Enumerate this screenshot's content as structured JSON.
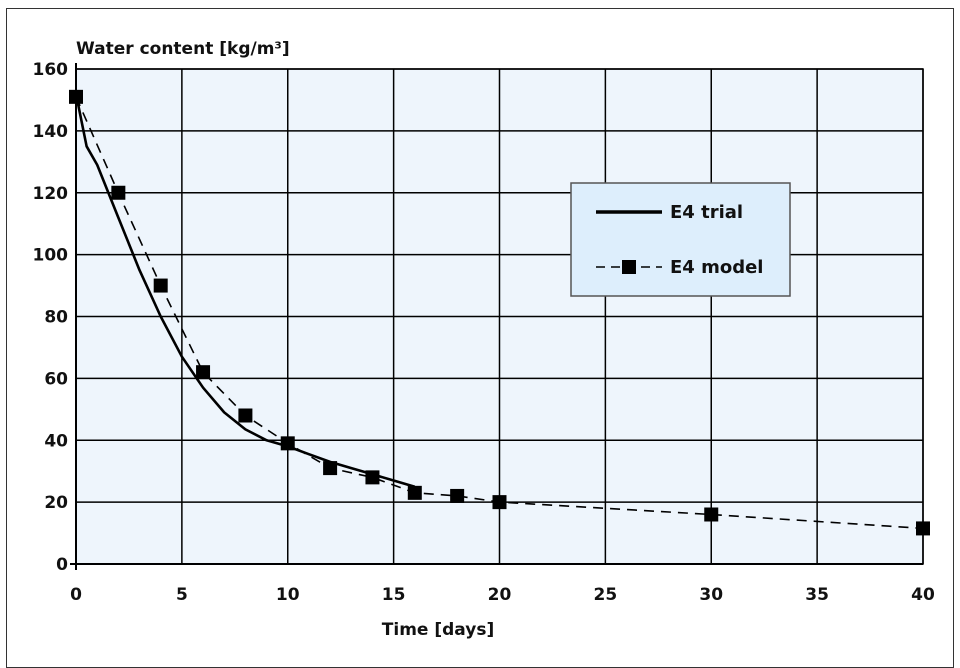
{
  "chart_data": {
    "type": "line",
    "ylabel": "Water content [kg/m³]",
    "xlabel": "Time [days]",
    "xlim": [
      0,
      40
    ],
    "ylim": [
      0,
      160
    ],
    "x_ticks": [
      0,
      5,
      10,
      15,
      20,
      25,
      30,
      35,
      40
    ],
    "y_ticks": [
      0,
      20,
      40,
      60,
      80,
      100,
      120,
      140,
      160
    ],
    "grid": true,
    "legend_position": "top-right",
    "colors": {
      "plot_bg": "#eef5fc",
      "legend_bg": "#ddeefc",
      "line": "#000000",
      "grid": "#000000"
    },
    "series": [
      {
        "name": "E4 trial",
        "style": "solid",
        "x": [
          0,
          0.5,
          1,
          2,
          3,
          4,
          5,
          6,
          7,
          8,
          9,
          10,
          11,
          12,
          13,
          14,
          15,
          16
        ],
        "y": [
          152,
          135,
          129,
          112,
          95,
          80,
          67,
          57,
          49,
          43.5,
          40,
          38,
          35.5,
          33,
          31,
          29,
          27,
          25
        ]
      },
      {
        "name": "E4 model",
        "style": "dashed",
        "markers": "square",
        "x": [
          0,
          2,
          4,
          6,
          8,
          10,
          12,
          14,
          16,
          18,
          20,
          30,
          40
        ],
        "y": [
          151,
          120,
          90,
          62,
          48,
          39,
          31,
          28,
          23,
          22,
          20,
          16,
          11.5
        ]
      }
    ]
  }
}
